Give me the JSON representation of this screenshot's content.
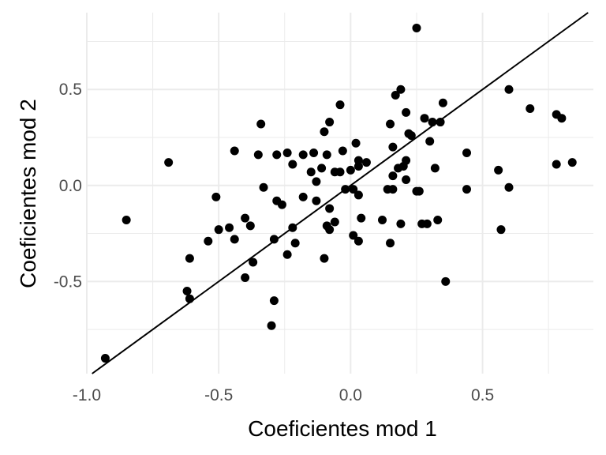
{
  "chart_data": {
    "type": "scatter",
    "xlabel": "Coeficientes mod 1",
    "ylabel": "Coeficientes mod 2",
    "xlim": [
      -1.0,
      0.92
    ],
    "ylim": [
      -0.98,
      0.9
    ],
    "x_ticks": [
      -1.0,
      -0.5,
      0.0,
      0.5
    ],
    "x_tick_labels": [
      "-1.0",
      "-0.5",
      "0.0",
      "0.5"
    ],
    "y_ticks": [
      -0.5,
      0.0,
      0.5
    ],
    "y_tick_labels": [
      "-0.5",
      "0.0",
      "0.5"
    ],
    "grid": true,
    "reference_line": {
      "slope": 1,
      "intercept": 0
    },
    "colors": {
      "points": "#000000",
      "grid": "#ebebeb",
      "background": "#ffffff"
    },
    "points": [
      [
        -0.93,
        -0.9
      ],
      [
        -0.85,
        -0.18
      ],
      [
        -0.69,
        0.12
      ],
      [
        -0.62,
        -0.55
      ],
      [
        -0.61,
        -0.38
      ],
      [
        -0.61,
        -0.59
      ],
      [
        -0.54,
        -0.29
      ],
      [
        -0.51,
        -0.06
      ],
      [
        -0.5,
        -0.23
      ],
      [
        -0.46,
        -0.22
      ],
      [
        -0.44,
        0.18
      ],
      [
        -0.44,
        -0.28
      ],
      [
        -0.4,
        -0.17
      ],
      [
        -0.4,
        -0.48
      ],
      [
        -0.38,
        -0.21
      ],
      [
        -0.37,
        -0.4
      ],
      [
        -0.35,
        0.16
      ],
      [
        -0.34,
        0.32
      ],
      [
        -0.33,
        -0.01
      ],
      [
        -0.3,
        -0.73
      ],
      [
        -0.29,
        -0.6
      ],
      [
        -0.29,
        -0.28
      ],
      [
        -0.28,
        0.16
      ],
      [
        -0.28,
        -0.08
      ],
      [
        -0.26,
        -0.1
      ],
      [
        -0.24,
        0.17
      ],
      [
        -0.24,
        -0.36
      ],
      [
        -0.22,
        0.11
      ],
      [
        -0.22,
        -0.22
      ],
      [
        -0.21,
        -0.3
      ],
      [
        -0.18,
        0.16
      ],
      [
        -0.18,
        -0.06
      ],
      [
        -0.15,
        0.07
      ],
      [
        -0.14,
        0.17
      ],
      [
        -0.13,
        0.02
      ],
      [
        -0.13,
        -0.08
      ],
      [
        -0.11,
        0.09
      ],
      [
        -0.1,
        0.28
      ],
      [
        -0.1,
        -0.38
      ],
      [
        -0.09,
        0.16
      ],
      [
        -0.09,
        -0.21
      ],
      [
        -0.08,
        -0.23
      ],
      [
        -0.08,
        0.33
      ],
      [
        -0.08,
        -0.12
      ],
      [
        -0.06,
        -0.19
      ],
      [
        -0.06,
        0.07
      ],
      [
        -0.04,
        0.42
      ],
      [
        -0.04,
        0.07
      ],
      [
        -0.03,
        0.18
      ],
      [
        -0.02,
        -0.02
      ],
      [
        0.0,
        0.08
      ],
      [
        0.01,
        -0.26
      ],
      [
        0.01,
        -0.02
      ],
      [
        0.02,
        0.22
      ],
      [
        0.03,
        0.13
      ],
      [
        0.03,
        0.1
      ],
      [
        0.03,
        -0.29
      ],
      [
        0.03,
        -0.05
      ],
      [
        0.04,
        -0.17
      ],
      [
        0.06,
        0.12
      ],
      [
        0.12,
        -0.18
      ],
      [
        0.14,
        -0.02
      ],
      [
        0.15,
        0.32
      ],
      [
        0.15,
        -0.3
      ],
      [
        0.16,
        0.2
      ],
      [
        0.16,
        -0.02
      ],
      [
        0.16,
        0.05
      ],
      [
        0.17,
        0.47
      ],
      [
        0.18,
        0.09
      ],
      [
        0.19,
        -0.2
      ],
      [
        0.19,
        0.5
      ],
      [
        0.2,
        0.1
      ],
      [
        0.21,
        0.03
      ],
      [
        0.21,
        0.38
      ],
      [
        0.21,
        0.13
      ],
      [
        0.22,
        0.27
      ],
      [
        0.23,
        0.26
      ],
      [
        0.25,
        0.82
      ],
      [
        0.25,
        -0.03
      ],
      [
        0.26,
        -0.03
      ],
      [
        0.27,
        -0.2
      ],
      [
        0.28,
        0.35
      ],
      [
        0.29,
        -0.2
      ],
      [
        0.3,
        0.23
      ],
      [
        0.31,
        0.33
      ],
      [
        0.32,
        0.09
      ],
      [
        0.33,
        -0.18
      ],
      [
        0.34,
        0.33
      ],
      [
        0.35,
        0.43
      ],
      [
        0.36,
        -0.5
      ],
      [
        0.44,
        0.17
      ],
      [
        0.44,
        -0.02
      ],
      [
        0.56,
        0.08
      ],
      [
        0.57,
        -0.23
      ],
      [
        0.6,
        0.5
      ],
      [
        0.6,
        -0.01
      ],
      [
        0.68,
        0.4
      ],
      [
        0.78,
        0.37
      ],
      [
        0.78,
        0.11
      ],
      [
        0.8,
        0.35
      ],
      [
        0.84,
        0.12
      ]
    ]
  }
}
